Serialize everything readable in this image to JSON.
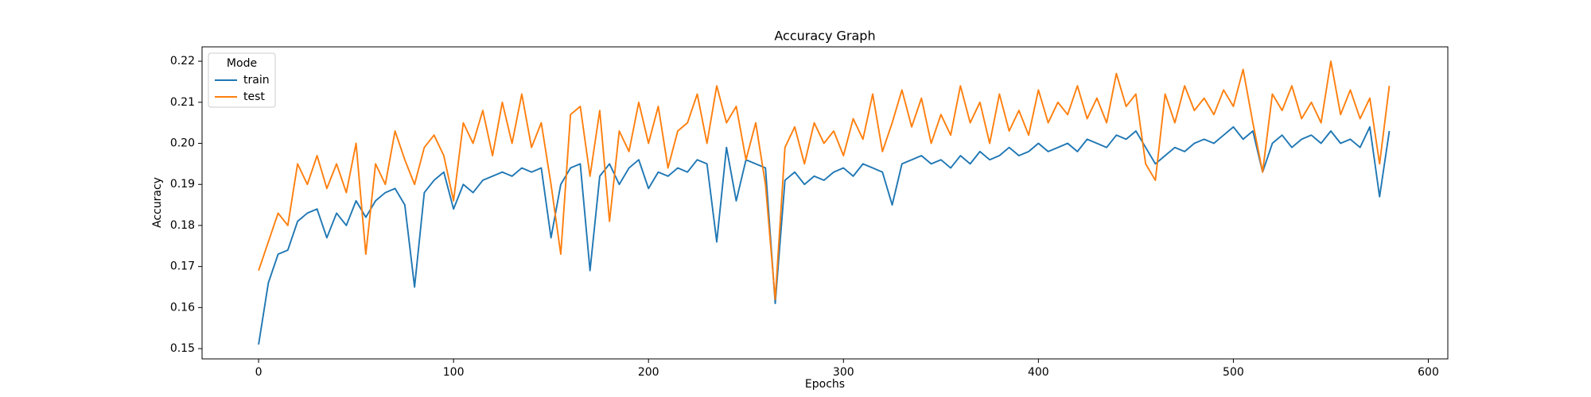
{
  "chart_data": {
    "type": "line",
    "title": "Accuracy Graph",
    "x_label": "Epochs",
    "y_label": "Accuracy",
    "legend_title": "Mode",
    "legend_position": "upper-left",
    "xlim": [
      -29,
      610
    ],
    "xticks": [
      0,
      100,
      200,
      300,
      400,
      500,
      600
    ],
    "ylim": [
      0.1475,
      0.2235
    ],
    "yticks": [
      0.15,
      0.16,
      0.17,
      0.18,
      0.19,
      {
        "value": 0.2,
        "label": "0.20"
      },
      0.21,
      0.22
    ],
    "x": [
      0,
      5,
      10,
      15,
      20,
      25,
      30,
      35,
      40,
      45,
      50,
      55,
      60,
      65,
      70,
      75,
      80,
      85,
      90,
      95,
      100,
      105,
      110,
      115,
      120,
      125,
      130,
      135,
      140,
      145,
      150,
      155,
      160,
      165,
      170,
      175,
      180,
      185,
      190,
      195,
      200,
      205,
      210,
      215,
      220,
      225,
      230,
      235,
      240,
      245,
      250,
      255,
      260,
      265,
      270,
      275,
      280,
      285,
      290,
      295,
      300,
      305,
      310,
      315,
      320,
      325,
      330,
      335,
      340,
      345,
      350,
      355,
      360,
      365,
      370,
      375,
      380,
      385,
      390,
      395,
      400,
      405,
      410,
      415,
      420,
      425,
      430,
      435,
      440,
      445,
      450,
      455,
      460,
      465,
      470,
      475,
      480,
      485,
      490,
      495,
      500,
      505,
      510,
      515,
      520,
      525,
      530,
      535,
      540,
      545,
      550,
      555,
      560,
      565,
      570,
      575,
      580
    ],
    "series": [
      {
        "name": "train",
        "color": "#1f77b4",
        "values": [
          0.151,
          0.166,
          0.173,
          0.174,
          0.181,
          0.183,
          0.184,
          0.177,
          0.183,
          0.18,
          0.186,
          0.182,
          0.186,
          0.188,
          0.189,
          0.185,
          0.165,
          0.188,
          0.191,
          0.193,
          0.184,
          0.19,
          0.188,
          0.191,
          0.192,
          0.193,
          0.192,
          0.194,
          0.193,
          0.194,
          0.177,
          0.19,
          0.194,
          0.195,
          0.169,
          0.192,
          0.195,
          0.19,
          0.194,
          0.196,
          0.189,
          0.193,
          0.192,
          0.194,
          0.193,
          0.196,
          0.195,
          0.176,
          0.199,
          0.186,
          0.196,
          0.195,
          0.194,
          0.161,
          0.191,
          0.193,
          0.19,
          0.192,
          0.191,
          0.193,
          0.194,
          0.192,
          0.195,
          0.194,
          0.193,
          0.185,
          0.195,
          0.196,
          0.197,
          0.195,
          0.196,
          0.194,
          0.197,
          0.195,
          0.198,
          0.196,
          0.197,
          0.199,
          0.197,
          0.198,
          0.2,
          0.198,
          0.199,
          0.2,
          0.198,
          0.201,
          0.2,
          0.199,
          0.202,
          0.201,
          0.203,
          0.199,
          0.195,
          0.197,
          0.199,
          0.198,
          0.2,
          0.201,
          0.2,
          0.202,
          0.204,
          0.201,
          0.203,
          0.193,
          0.2,
          0.202,
          0.199,
          0.201,
          0.202,
          0.2,
          0.203,
          0.2,
          0.201,
          0.199,
          0.204,
          0.187,
          0.203
        ]
      },
      {
        "name": "test",
        "color": "#ff7f0e",
        "values": [
          0.169,
          0.176,
          0.183,
          0.18,
          0.195,
          0.19,
          0.197,
          0.189,
          0.195,
          0.188,
          0.2,
          0.173,
          0.195,
          0.19,
          0.203,
          0.196,
          0.19,
          0.199,
          0.202,
          0.197,
          0.186,
          0.205,
          0.2,
          0.208,
          0.197,
          0.21,
          0.2,
          0.212,
          0.199,
          0.205,
          0.19,
          0.173,
          0.207,
          0.209,
          0.192,
          0.208,
          0.181,
          0.203,
          0.198,
          0.21,
          0.2,
          0.209,
          0.194,
          0.203,
          0.205,
          0.212,
          0.2,
          0.214,
          0.205,
          0.209,
          0.196,
          0.205,
          0.19,
          0.162,
          0.199,
          0.204,
          0.195,
          0.205,
          0.2,
          0.203,
          0.197,
          0.206,
          0.201,
          0.212,
          0.198,
          0.205,
          0.213,
          0.204,
          0.211,
          0.2,
          0.207,
          0.202,
          0.214,
          0.205,
          0.21,
          0.2,
          0.212,
          0.203,
          0.208,
          0.202,
          0.213,
          0.205,
          0.21,
          0.207,
          0.214,
          0.206,
          0.211,
          0.205,
          0.217,
          0.209,
          0.212,
          0.195,
          0.191,
          0.212,
          0.205,
          0.214,
          0.208,
          0.211,
          0.207,
          0.213,
          0.209,
          0.218,
          0.205,
          0.193,
          0.212,
          0.208,
          0.214,
          0.206,
          0.21,
          0.205,
          0.22,
          0.207,
          0.213,
          0.206,
          0.211,
          0.195,
          0.214
        ]
      }
    ]
  }
}
